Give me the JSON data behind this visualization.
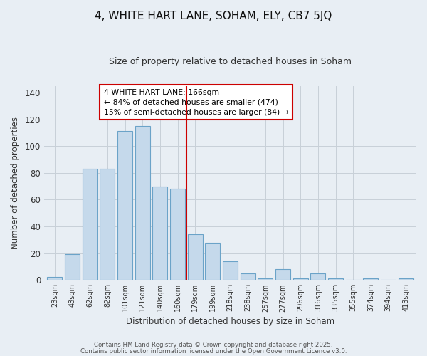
{
  "title": "4, WHITE HART LANE, SOHAM, ELY, CB7 5JQ",
  "subtitle": "Size of property relative to detached houses in Soham",
  "xlabel": "Distribution of detached houses by size in Soham",
  "ylabel": "Number of detached properties",
  "categories": [
    "23sqm",
    "43sqm",
    "62sqm",
    "82sqm",
    "101sqm",
    "121sqm",
    "140sqm",
    "160sqm",
    "179sqm",
    "199sqm",
    "218sqm",
    "238sqm",
    "257sqm",
    "277sqm",
    "296sqm",
    "316sqm",
    "335sqm",
    "355sqm",
    "374sqm",
    "394sqm",
    "413sqm"
  ],
  "values": [
    2,
    19,
    83,
    83,
    111,
    115,
    70,
    68,
    34,
    28,
    14,
    5,
    1,
    8,
    1,
    5,
    1,
    0,
    1,
    0,
    1
  ],
  "bar_color": "#c5d9eb",
  "bar_edge_color": "#6ba3c8",
  "vline_x": 7.5,
  "vline_color": "#cc0000",
  "annotation_title": "4 WHITE HART LANE: 166sqm",
  "annotation_line1": "← 84% of detached houses are smaller (474)",
  "annotation_line2": "15% of semi-detached houses are larger (84) →",
  "annotation_box_color": "#cc0000",
  "annotation_text_color": "#000000",
  "ylim": [
    0,
    145
  ],
  "yticks": [
    0,
    20,
    40,
    60,
    80,
    100,
    120,
    140
  ],
  "grid_color": "#c8d0d8",
  "background_color": "#e8eef4",
  "footer1": "Contains HM Land Registry data © Crown copyright and database right 2025.",
  "footer2": "Contains public sector information licensed under the Open Government Licence v3.0."
}
